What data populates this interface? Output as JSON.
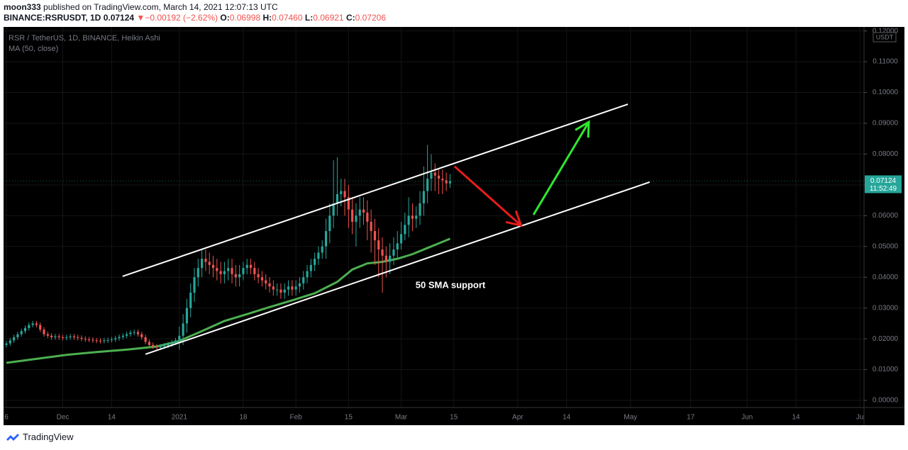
{
  "header": {
    "author": "moon333",
    "published": "published on TradingView.com, March 14, 2021 12:07:13 UTC",
    "symbol": "BINANCE:RSRUSDT, 1D",
    "last": "0.07124",
    "arrow": "▼",
    "change": "−0.00192 (−2.62%)",
    "fields": [
      {
        "k": "O:",
        "v": "0.06998"
      },
      {
        "k": "H:",
        "v": "0.07460"
      },
      {
        "k": "L:",
        "v": "0.06921"
      },
      {
        "k": "C:",
        "v": "0.07206"
      }
    ]
  },
  "chart_data": {
    "type": "candlestick",
    "legend": [
      "RSR / TetherUS, 1D, BINANCE, Heikin Ashi",
      "MA (50, close)"
    ],
    "up_color": "#26a69a",
    "down_color": "#ef5350",
    "grid": true,
    "x": [
      0,
      1,
      2,
      3,
      4,
      5,
      6,
      7,
      8,
      9,
      10,
      11,
      12,
      13,
      14,
      15,
      16,
      17,
      18,
      19,
      20,
      21,
      22,
      23,
      24,
      25,
      26,
      27,
      28,
      29,
      30,
      31,
      32,
      33,
      34,
      35,
      36,
      37,
      38,
      39,
      40,
      41,
      42,
      43,
      44,
      45,
      46,
      47,
      48,
      49,
      50,
      51,
      52,
      53,
      54,
      55,
      56,
      57,
      58,
      59,
      60,
      61,
      62,
      63,
      64,
      65,
      66,
      67,
      68,
      69,
      70,
      71,
      72,
      73,
      74,
      75,
      76,
      77,
      78,
      79,
      80,
      81,
      82,
      83,
      84,
      85,
      86,
      87,
      88,
      89,
      90,
      91,
      92,
      93,
      94,
      95,
      96,
      97,
      98,
      99,
      100,
      101,
      102,
      103,
      104,
      105,
      106,
      107,
      108,
      109,
      110,
      111,
      112,
      113,
      114,
      115,
      116,
      117,
      118
    ],
    "open": [
      0.018,
      0.0185,
      0.0195,
      0.0205,
      0.0215,
      0.0225,
      0.0235,
      0.0245,
      0.025,
      0.0245,
      0.023,
      0.0215,
      0.021,
      0.0205,
      0.0208,
      0.0205,
      0.0203,
      0.0205,
      0.0208,
      0.0205,
      0.0203,
      0.02,
      0.0198,
      0.0197,
      0.0195,
      0.0194,
      0.0193,
      0.0195,
      0.0196,
      0.0198,
      0.0202,
      0.0206,
      0.021,
      0.0215,
      0.022,
      0.0222,
      0.0215,
      0.0205,
      0.019,
      0.018,
      0.0175,
      0.0172,
      0.0175,
      0.0178,
      0.0182,
      0.0188,
      0.0195,
      0.021,
      0.025,
      0.03,
      0.035,
      0.04,
      0.043,
      0.046,
      0.045,
      0.044,
      0.043,
      0.042,
      0.041,
      0.042,
      0.043,
      0.041,
      0.04,
      0.041,
      0.043,
      0.044,
      0.043,
      0.041,
      0.04,
      0.039,
      0.038,
      0.037,
      0.036,
      0.036,
      0.035,
      0.036,
      0.037,
      0.036,
      0.037,
      0.038,
      0.04,
      0.042,
      0.044,
      0.046,
      0.048,
      0.05,
      0.055,
      0.06,
      0.064,
      0.067,
      0.068,
      0.066,
      0.062,
      0.058,
      0.06,
      0.062,
      0.061,
      0.058,
      0.055,
      0.052,
      0.049,
      0.047,
      0.045,
      0.047,
      0.049,
      0.051,
      0.054,
      0.057,
      0.06,
      0.059,
      0.06,
      0.064,
      0.068,
      0.072,
      0.074,
      0.073,
      0.072,
      0.0715,
      0.0705
    ],
    "high": [
      0.0193,
      0.0203,
      0.0213,
      0.0223,
      0.0233,
      0.0243,
      0.0253,
      0.0258,
      0.0258,
      0.0253,
      0.0238,
      0.0223,
      0.0218,
      0.0216,
      0.0216,
      0.0213,
      0.0213,
      0.0216,
      0.0216,
      0.0213,
      0.0211,
      0.0208,
      0.0206,
      0.0205,
      0.0203,
      0.0202,
      0.0203,
      0.0204,
      0.0206,
      0.021,
      0.0214,
      0.0218,
      0.0223,
      0.0228,
      0.023,
      0.023,
      0.0223,
      0.0213,
      0.0198,
      0.0188,
      0.0183,
      0.0183,
      0.0186,
      0.019,
      0.0196,
      0.0203,
      0.024,
      0.028,
      0.033,
      0.038,
      0.043,
      0.046,
      0.049,
      0.049,
      0.048,
      0.047,
      0.046,
      0.045,
      0.045,
      0.046,
      0.046,
      0.044,
      0.044,
      0.045,
      0.046,
      0.046,
      0.045,
      0.043,
      0.042,
      0.041,
      0.04,
      0.039,
      0.038,
      0.038,
      0.038,
      0.039,
      0.039,
      0.039,
      0.04,
      0.042,
      0.044,
      0.046,
      0.048,
      0.05,
      0.052,
      0.059,
      0.064,
      0.078,
      0.079,
      0.072,
      0.072,
      0.07,
      0.066,
      0.064,
      0.066,
      0.066,
      0.065,
      0.062,
      0.059,
      0.056,
      0.053,
      0.05,
      0.051,
      0.053,
      0.055,
      0.058,
      0.061,
      0.066,
      0.064,
      0.063,
      0.068,
      0.076,
      0.083,
      0.08,
      0.077,
      0.075,
      0.075,
      0.074,
      0.0735
    ],
    "low": [
      0.0172,
      0.0177,
      0.0187,
      0.0197,
      0.0207,
      0.0217,
      0.0227,
      0.0237,
      0.0237,
      0.0222,
      0.0207,
      0.0202,
      0.0197,
      0.0197,
      0.0197,
      0.0195,
      0.0195,
      0.0197,
      0.0197,
      0.0195,
      0.0192,
      0.019,
      0.0189,
      0.0187,
      0.0186,
      0.0185,
      0.0185,
      0.0187,
      0.0188,
      0.019,
      0.0194,
      0.0198,
      0.0202,
      0.0207,
      0.0212,
      0.0207,
      0.0197,
      0.0182,
      0.0172,
      0.0167,
      0.0164,
      0.0164,
      0.0167,
      0.017,
      0.0174,
      0.018,
      0.0165,
      0.018,
      0.022,
      0.027,
      0.032,
      0.037,
      0.04,
      0.042,
      0.041,
      0.04,
      0.039,
      0.038,
      0.038,
      0.039,
      0.038,
      0.037,
      0.037,
      0.039,
      0.041,
      0.041,
      0.039,
      0.038,
      0.037,
      0.036,
      0.035,
      0.034,
      0.034,
      0.033,
      0.033,
      0.034,
      0.034,
      0.034,
      0.035,
      0.036,
      0.038,
      0.04,
      0.042,
      0.044,
      0.046,
      0.046,
      0.051,
      0.056,
      0.06,
      0.063,
      0.06,
      0.056,
      0.054,
      0.05,
      0.056,
      0.057,
      0.052,
      0.048,
      0.044,
      0.04,
      0.035,
      0.04,
      0.041,
      0.044,
      0.046,
      0.049,
      0.052,
      0.053,
      0.055,
      0.056,
      0.057,
      0.06,
      0.064,
      0.068,
      0.068,
      0.067,
      0.067,
      0.068,
      0.069
    ],
    "close": [
      0.0185,
      0.0195,
      0.0205,
      0.0215,
      0.0225,
      0.0235,
      0.0245,
      0.025,
      0.0245,
      0.023,
      0.0215,
      0.021,
      0.0205,
      0.0208,
      0.0205,
      0.0203,
      0.0205,
      0.0208,
      0.0205,
      0.0203,
      0.02,
      0.0198,
      0.0197,
      0.0195,
      0.0194,
      0.0193,
      0.0195,
      0.0196,
      0.0198,
      0.0202,
      0.0206,
      0.021,
      0.0215,
      0.022,
      0.0222,
      0.0215,
      0.0205,
      0.019,
      0.018,
      0.0175,
      0.0172,
      0.0175,
      0.0178,
      0.0182,
      0.0188,
      0.0195,
      0.021,
      0.025,
      0.03,
      0.035,
      0.04,
      0.043,
      0.046,
      0.045,
      0.044,
      0.043,
      0.042,
      0.041,
      0.042,
      0.043,
      0.041,
      0.04,
      0.041,
      0.043,
      0.044,
      0.043,
      0.041,
      0.04,
      0.039,
      0.038,
      0.037,
      0.036,
      0.036,
      0.035,
      0.036,
      0.037,
      0.036,
      0.037,
      0.038,
      0.04,
      0.042,
      0.044,
      0.046,
      0.048,
      0.05,
      0.055,
      0.06,
      0.064,
      0.067,
      0.068,
      0.066,
      0.062,
      0.058,
      0.06,
      0.062,
      0.061,
      0.058,
      0.055,
      0.052,
      0.049,
      0.047,
      0.045,
      0.047,
      0.049,
      0.051,
      0.054,
      0.057,
      0.06,
      0.059,
      0.06,
      0.064,
      0.068,
      0.072,
      0.074,
      0.073,
      0.072,
      0.0715,
      0.0705,
      0.0712
    ],
    "ma": {
      "color": "#4caf50",
      "x": [
        0,
        8,
        16,
        24,
        32,
        40,
        46,
        52,
        58,
        64,
        70,
        76,
        82,
        88,
        92,
        96,
        100,
        104,
        108,
        112,
        116,
        118
      ],
      "values": [
        0.0122,
        0.0135,
        0.0148,
        0.0157,
        0.0165,
        0.0175,
        0.0193,
        0.0225,
        0.0258,
        0.028,
        0.0303,
        0.0325,
        0.0348,
        0.0385,
        0.0425,
        0.0445,
        0.045,
        0.046,
        0.0475,
        0.0495,
        0.0515,
        0.0525
      ]
    },
    "drawings": [
      {
        "color": "#ffffff",
        "x": [
          30.9,
          165.3
        ],
        "y": [
          0.0403,
          0.0962
        ]
      },
      {
        "color": "#ffffff",
        "x": [
          37,
          171.1
        ],
        "y": [
          0.015,
          0.0709
        ]
      },
      {
        "color": "#e81c1c",
        "arrow": true,
        "x": [
          119.2,
          136.9
        ],
        "y": [
          0.076,
          0.0568
        ]
      },
      {
        "color": "#2ee82e",
        "arrow": true,
        "x": [
          140.2,
          154.9
        ],
        "y": [
          0.0603,
          0.0904
        ]
      }
    ],
    "annotation": "50 SMA support",
    "currency": "USDT",
    "last_price": 0.07124,
    "countdown": "11:52:49",
    "xlim": [
      -0.755,
      228.1
    ],
    "ylim": [
      -0.0023,
      0.1213
    ],
    "xticks": [
      {
        "value": 0,
        "label": "6"
      },
      {
        "value": 15,
        "label": "Dec"
      },
      {
        "value": 28,
        "label": "14"
      },
      {
        "value": 46,
        "label": "2021"
      },
      {
        "value": 63,
        "label": "18"
      },
      {
        "value": 77,
        "label": "Feb"
      },
      {
        "value": 91,
        "label": "15"
      },
      {
        "value": 105,
        "label": "Mar"
      },
      {
        "value": 119,
        "label": "15"
      },
      {
        "value": 136,
        "label": "Apr"
      },
      {
        "value": 149,
        "label": "14"
      },
      {
        "value": 166,
        "label": "May"
      },
      {
        "value": 182,
        "label": "17"
      },
      {
        "value": 197,
        "label": "Jun"
      },
      {
        "value": 210,
        "label": "14"
      },
      {
        "value": 227,
        "label": "Ju"
      }
    ],
    "yticks": [
      {
        "value": 0,
        "label": "0.00000"
      },
      {
        "value": 0.01,
        "label": "0.01000"
      },
      {
        "value": 0.02,
        "label": "0.02000"
      },
      {
        "value": 0.03,
        "label": "0.03000"
      },
      {
        "value": 0.04,
        "label": "0.04000"
      },
      {
        "value": 0.05,
        "label": "0.05000"
      },
      {
        "value": 0.06,
        "label": "0.06000"
      },
      {
        "value": 0.07,
        "label": "0.07000"
      },
      {
        "value": 0.08,
        "label": "0.08000"
      },
      {
        "value": 0.09,
        "label": "0.09000"
      },
      {
        "value": 0.1,
        "label": "0.10000"
      },
      {
        "value": 0.11,
        "label": "0.11000"
      },
      {
        "value": 0.12,
        "label": "0.12000"
      }
    ]
  },
  "footer": {
    "brand": "TradingView"
  }
}
